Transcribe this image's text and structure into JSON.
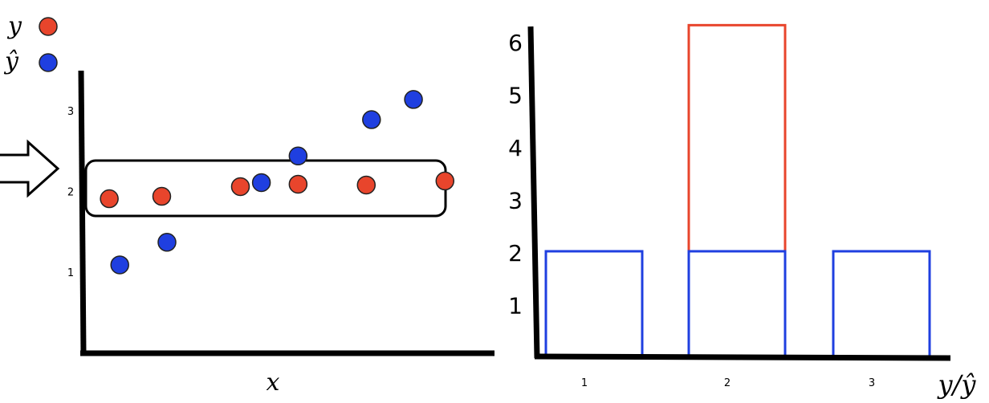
{
  "chart_data": [
    {
      "type": "scatter",
      "xlabel": "x",
      "ylabel": "",
      "ylim": [
        0,
        3.5
      ],
      "yticks": [
        "1",
        "2",
        "3"
      ],
      "legend": {
        "placement": "top-left",
        "entries": [
          {
            "label": "y",
            "color": "#e8452c"
          },
          {
            "label": "ŷ",
            "color": "#1f3fe0"
          }
        ]
      },
      "annotations": [
        "arrow pointing to band around y ≈ 2",
        "rounded box around y ≈ 2 band"
      ],
      "series": [
        {
          "name": "y",
          "color": "#e8452c",
          "points": [
            [
              0.4,
              1.92
            ],
            [
              1.4,
              1.95
            ],
            [
              2.9,
              2.07
            ],
            [
              4.0,
              2.1
            ],
            [
              5.3,
              2.09
            ],
            [
              6.8,
              2.14
            ]
          ]
        },
        {
          "name": "ŷ",
          "color": "#1f3fe0",
          "points": [
            [
              0.6,
              1.1
            ],
            [
              1.5,
              1.38
            ],
            [
              3.3,
              2.12
            ],
            [
              4.0,
              2.45
            ],
            [
              5.4,
              2.9
            ],
            [
              6.2,
              3.15
            ]
          ]
        }
      ]
    },
    {
      "type": "bar",
      "xlabel": "y/ŷ",
      "ylabel": "",
      "categories": [
        "1",
        "2",
        "3"
      ],
      "ylim": [
        0,
        6.3
      ],
      "yticks": [
        "1",
        "2",
        "3",
        "4",
        "5",
        "6"
      ],
      "style": "outline",
      "series": [
        {
          "name": "ŷ",
          "color": "#1f3fe0",
          "values": [
            2,
            2,
            2
          ]
        },
        {
          "name": "y",
          "color": "#e8452c",
          "values": [
            0,
            6.3,
            0
          ]
        }
      ]
    }
  ]
}
